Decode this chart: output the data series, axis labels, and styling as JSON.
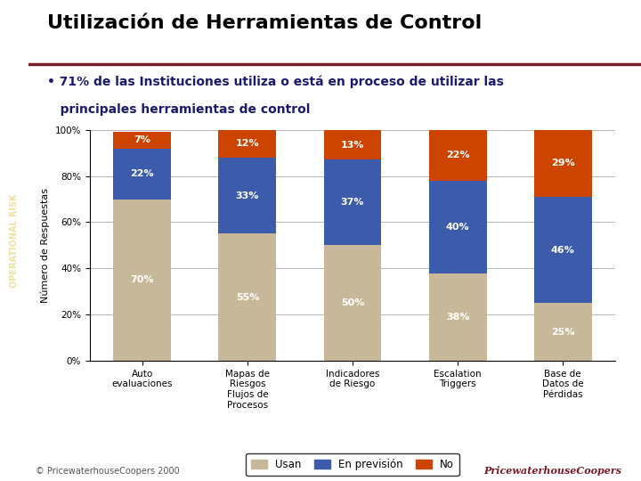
{
  "title": "Utilización de Herramientas de Control",
  "bullet_line1": "• 71% de las Instituciones utiliza o está en proceso de utilizar las",
  "bullet_line2": "   principales herramientas de control",
  "categories": [
    "Auto\nevaluaciones",
    "Mapas de\nRiesgos\nFlujos de\nProcesos",
    "Indicadores\nde Riesgo",
    "Escalation\nTriggers",
    "Base de\nDatos de\nPérdidas"
  ],
  "usan": [
    70,
    55,
    50,
    38,
    25
  ],
  "prevision": [
    22,
    33,
    37,
    40,
    46
  ],
  "no": [
    7,
    12,
    13,
    22,
    29
  ],
  "color_usan": "#C8B89A",
  "color_prevision": "#3C5BAA",
  "color_no": "#CC4400",
  "ylabel": "Número de Respuestas",
  "ylim": [
    0,
    100
  ],
  "yticks": [
    0,
    20,
    40,
    60,
    80,
    100
  ],
  "legend_labels": [
    "Usan",
    "En previsión",
    "No"
  ],
  "background_color": "#FFFFFF",
  "left_bar_color": "#7A1B2A",
  "title_fontsize": 16,
  "bullet_fontsize": 10,
  "label_fontsize": 8,
  "axis_fontsize": 8,
  "copyright": "© PricewaterhouseCoopers 2000",
  "sidebar_text": "OPERATIONAL RISK",
  "sidebar_color": "#7A1B2A",
  "sidebar_text_color": "#F0E0A0"
}
